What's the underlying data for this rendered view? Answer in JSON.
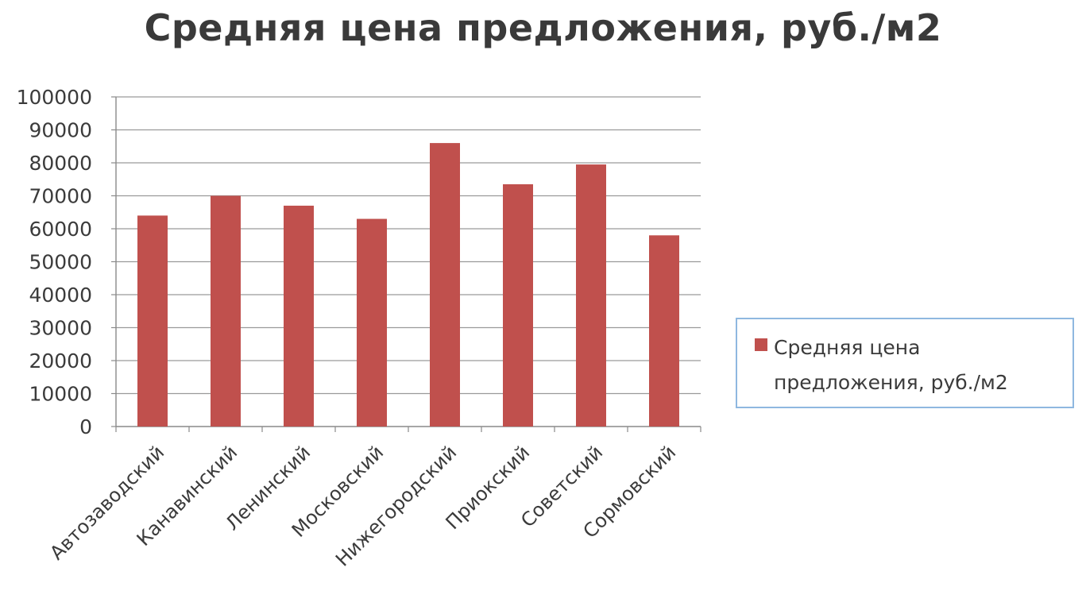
{
  "chart_data": {
    "type": "bar",
    "title": "Средняя цена предложения, руб./м2",
    "xlabel": "",
    "ylabel": "",
    "categories": [
      "Автозаводский",
      "Канавинский",
      "Ленинский",
      "Московский",
      "Нижегородский",
      "Приокский",
      "Советский",
      "Сормовский"
    ],
    "series": [
      {
        "name": "Средняя цена предложения, руб./м2",
        "values": [
          64000,
          70000,
          67000,
          63000,
          86000,
          73500,
          79500,
          58000
        ],
        "color": "#c0504d"
      }
    ],
    "ylim": [
      0,
      100000
    ],
    "yticks": [
      "0",
      "10000",
      "20000",
      "30000",
      "40000",
      "50000",
      "60000",
      "70000",
      "80000",
      "90000",
      "100000"
    ],
    "grid": true,
    "legend_position": "right"
  }
}
